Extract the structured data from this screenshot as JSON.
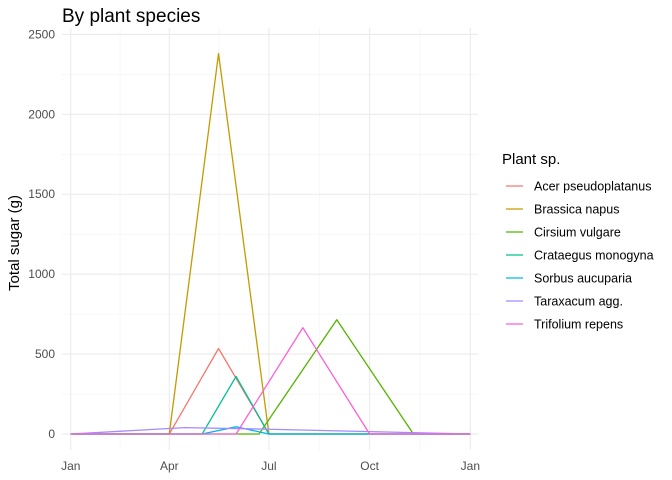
{
  "chart_data": {
    "type": "line",
    "title": "By plant species",
    "xlabel": "",
    "ylabel": "Total sugar (g)",
    "ylim": [
      -100,
      2540
    ],
    "xlim": [
      "2020-12-24",
      "2022-01-08"
    ],
    "x_ticks": [
      "2021-01-01",
      "2021-04-01",
      "2021-07-01",
      "2021-10-01",
      "2022-01-01"
    ],
    "x_tick_labels": [
      "Jan",
      "Apr",
      "Jul",
      "Oct",
      "Jan"
    ],
    "y_ticks": [
      0,
      500,
      1000,
      1500,
      2000,
      2500
    ],
    "y_tick_labels": [
      "0",
      "500",
      "1000",
      "1500",
      "2000",
      "2500"
    ],
    "grid": true,
    "legend": {
      "title": "Plant sp.",
      "position": "right"
    },
    "series": [
      {
        "name": "Acer pseudoplatanus",
        "color": "#F8766D",
        "points": [
          [
            "2021-01-01",
            0
          ],
          [
            "2021-04-01",
            0
          ],
          [
            "2021-05-16",
            535
          ],
          [
            "2021-07-01",
            0
          ],
          [
            "2022-01-01",
            0
          ]
        ]
      },
      {
        "name": "Brassica napus",
        "color": "#C49A00",
        "points": [
          [
            "2021-01-01",
            0
          ],
          [
            "2021-04-01",
            0
          ],
          [
            "2021-05-16",
            2380
          ],
          [
            "2021-07-01",
            0
          ],
          [
            "2022-01-01",
            0
          ]
        ]
      },
      {
        "name": "Cirsium vulgare",
        "color": "#53B400",
        "points": [
          [
            "2021-01-01",
            0
          ],
          [
            "2021-06-22",
            0
          ],
          [
            "2021-09-01",
            715
          ],
          [
            "2021-11-10",
            0
          ],
          [
            "2022-01-01",
            0
          ]
        ]
      },
      {
        "name": "Crataegus monogyna",
        "color": "#00C094",
        "points": [
          [
            "2021-01-01",
            0
          ],
          [
            "2021-05-01",
            0
          ],
          [
            "2021-06-01",
            360
          ],
          [
            "2021-07-01",
            0
          ],
          [
            "2022-01-01",
            0
          ]
        ]
      },
      {
        "name": "Sorbus aucuparia",
        "color": "#00B6EB",
        "points": [
          [
            "2021-01-01",
            0
          ],
          [
            "2021-05-01",
            0
          ],
          [
            "2021-06-01",
            45
          ],
          [
            "2021-07-01",
            0
          ],
          [
            "2022-01-01",
            0
          ]
        ]
      },
      {
        "name": "Taraxacum agg.",
        "color": "#A58AFF",
        "points": [
          [
            "2021-01-01",
            0
          ],
          [
            "2021-04-15",
            40
          ],
          [
            "2021-07-01",
            30
          ],
          [
            "2021-10-01",
            15
          ],
          [
            "2022-01-01",
            0
          ]
        ]
      },
      {
        "name": "Trifolium repens",
        "color": "#FB61D7",
        "points": [
          [
            "2021-01-01",
            0
          ],
          [
            "2021-04-01",
            0
          ],
          [
            "2021-06-01",
            0
          ],
          [
            "2021-08-01",
            665
          ],
          [
            "2021-10-01",
            0
          ],
          [
            "2022-01-01",
            0
          ]
        ]
      }
    ]
  }
}
